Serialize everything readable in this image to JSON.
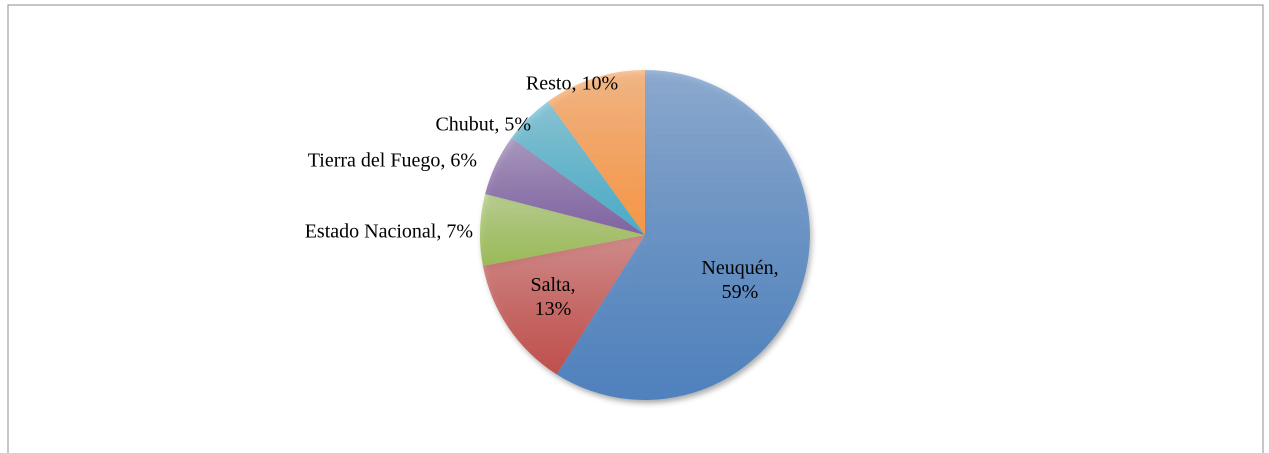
{
  "chart_data": {
    "type": "pie",
    "values": [
      59,
      13,
      7,
      6,
      5,
      10
    ],
    "value_labels": [
      "Neuquén, 59%",
      "Salta, 13%",
      "Estado Nacional, 7%",
      "Tierra del Fuego, 6%",
      "Chubut, 5%",
      "Resto, 10%"
    ],
    "colors": [
      "#4f81bd",
      "#c0504d",
      "#9bbb59",
      "#8064a2",
      "#4bacc6",
      "#f79646"
    ]
  }
}
